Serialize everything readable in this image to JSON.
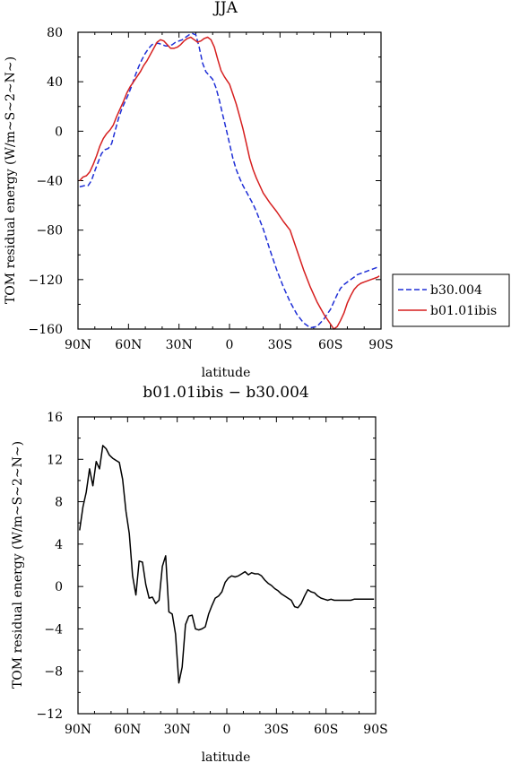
{
  "chart_data": [
    {
      "type": "line",
      "title": "JJA",
      "xlabel": "latitude",
      "ylabel": "TOM residual energy (W/m~S~2~N~)",
      "xlim": [
        90,
        -90
      ],
      "ylim": [
        -160,
        80
      ],
      "x_ticks": [
        90,
        60,
        30,
        0,
        -30,
        -60,
        -90
      ],
      "x_tick_labels": [
        "90N",
        "60N",
        "30N",
        "0",
        "30S",
        "60S",
        "90S"
      ],
      "y_ticks": [
        -160,
        -120,
        -80,
        -40,
        0,
        40,
        80
      ],
      "y_tick_labels": [
        "−160",
        "−120",
        "−80",
        "−40",
        "0",
        "40",
        "80"
      ],
      "legend_position": "right",
      "series": [
        {
          "name": "b30.004",
          "color": "#1f2fd6",
          "dash": "dashed",
          "x": [
            89,
            86,
            84,
            82,
            80,
            78,
            76,
            74,
            72,
            70,
            68,
            66,
            64,
            62,
            60,
            58,
            56,
            54,
            52,
            50,
            48,
            46,
            44,
            42,
            40,
            38,
            36,
            34,
            32,
            30,
            28,
            26,
            24,
            22,
            20,
            18,
            16,
            14,
            12,
            10,
            8,
            6,
            4,
            2,
            0,
            -2,
            -4,
            -6,
            -8,
            -10,
            -12,
            -14,
            -16,
            -18,
            -20,
            -24,
            -28,
            -32,
            -36,
            -40,
            -44,
            -48,
            -52,
            -56,
            -60,
            -62,
            -64,
            -66,
            -68,
            -70,
            -72,
            -74,
            -76,
            -78,
            -80,
            -82,
            -84,
            -86,
            -88,
            -89
          ],
          "values": [
            -45,
            -44,
            -44,
            -40,
            -32,
            -25,
            -18,
            -15,
            -14,
            -10,
            0,
            10,
            18,
            24,
            30,
            37,
            45,
            52,
            58,
            63,
            67,
            70,
            71,
            71,
            70,
            69,
            69,
            70,
            72,
            73,
            74,
            76,
            78,
            79,
            78,
            68,
            55,
            48,
            45,
            42,
            35,
            25,
            13,
            2,
            -10,
            -22,
            -31,
            -38,
            -44,
            -49,
            -54,
            -59,
            -65,
            -72,
            -79,
            -96,
            -112,
            -126,
            -138,
            -148,
            -155,
            -159,
            -158,
            -152,
            -144,
            -138,
            -132,
            -127,
            -124,
            -122,
            -120,
            -118,
            -116,
            -115,
            -114,
            -113,
            -112,
            -111,
            -110,
            -110
          ]
        },
        {
          "name": "b01.01ibis",
          "color": "#d61f1f",
          "dash": "solid",
          "x": [
            89,
            87,
            85,
            83,
            81,
            79,
            77,
            75,
            73,
            71,
            69,
            67,
            65,
            63,
            61,
            59,
            57,
            55,
            53,
            51,
            49,
            47,
            45,
            43,
            41,
            39,
            37,
            35,
            33,
            31,
            29,
            27,
            25,
            23,
            21,
            19,
            17,
            15,
            13,
            11,
            9,
            7,
            5,
            3,
            1,
            0,
            -2,
            -4,
            -6,
            -8,
            -10,
            -12,
            -14,
            -16,
            -18,
            -20,
            -24,
            -28,
            -32,
            -36,
            -40,
            -44,
            -48,
            -52,
            -56,
            -60,
            -62,
            -64,
            -66,
            -68,
            -70,
            -72,
            -74,
            -76,
            -78,
            -80,
            -82,
            -84,
            -86,
            -88,
            -89
          ],
          "values": [
            -40,
            -37,
            -36,
            -33,
            -27,
            -20,
            -12,
            -6,
            -2,
            1,
            5,
            12,
            18,
            24,
            31,
            36,
            40,
            44,
            48,
            53,
            57,
            62,
            67,
            72,
            74,
            73,
            70,
            67,
            67,
            68,
            70,
            73,
            75,
            76,
            74,
            72,
            73,
            75,
            76,
            74,
            68,
            58,
            49,
            44,
            40,
            38,
            30,
            22,
            12,
            2,
            -10,
            -22,
            -31,
            -38,
            -44,
            -50,
            -58,
            -65,
            -73,
            -80,
            -96,
            -112,
            -126,
            -138,
            -148,
            -156,
            -160,
            -158,
            -153,
            -147,
            -139,
            -133,
            -128,
            -125,
            -123,
            -122,
            -121,
            -120,
            -119,
            -118,
            -117
          ]
        }
      ]
    },
    {
      "type": "line",
      "title": "b01.01ibis − b30.004",
      "xlabel": "latitude",
      "ylabel": "TOM residual energy (W/m~S~2~N~)",
      "xlim": [
        90,
        -90
      ],
      "ylim": [
        -12,
        16
      ],
      "x_ticks": [
        90,
        60,
        30,
        0,
        -30,
        -60,
        -90
      ],
      "x_tick_labels": [
        "90N",
        "60N",
        "30N",
        "0",
        "30S",
        "60S",
        "90S"
      ],
      "y_ticks": [
        -12,
        -8,
        -4,
        0,
        4,
        8,
        12,
        16
      ],
      "y_tick_labels": [
        "−12",
        "−8",
        "−4",
        "0",
        "4",
        "8",
        "12",
        "16"
      ],
      "series": [
        {
          "name": "",
          "color": "#000000",
          "dash": "solid",
          "x": [
            89,
            87,
            85,
            83,
            81,
            79,
            77,
            75,
            73,
            71,
            69,
            67,
            65,
            63,
            61,
            59,
            57,
            55,
            53,
            51,
            49,
            47,
            45,
            43,
            41,
            39,
            37,
            35,
            33,
            31,
            29,
            27,
            25,
            23,
            21,
            19,
            17,
            15,
            13,
            11,
            9,
            7,
            5,
            3,
            1,
            -1,
            -3,
            -5,
            -7,
            -9,
            -11,
            -13,
            -15,
            -17,
            -19,
            -21,
            -23,
            -25,
            -27,
            -29,
            -31,
            -33,
            -35,
            -37,
            -39,
            -41,
            -43,
            -45,
            -47,
            -49,
            -51,
            -53,
            -55,
            -57,
            -59,
            -61,
            -63,
            -65,
            -67,
            -69,
            -71,
            -73,
            -75,
            -77,
            -79,
            -81,
            -83,
            -85,
            -87,
            -89
          ],
          "values": [
            5.3,
            7.5,
            8.9,
            11.1,
            9.5,
            11.8,
            11.1,
            13.3,
            13.0,
            12.4,
            12.1,
            11.9,
            11.7,
            10.1,
            7.1,
            5.0,
            1.0,
            -0.8,
            2.4,
            2.3,
            0.2,
            -1.1,
            -1.0,
            -1.6,
            -1.3,
            1.9,
            2.9,
            -2.4,
            -2.6,
            -4.5,
            -9.1,
            -7.6,
            -3.6,
            -2.8,
            -2.7,
            -4.0,
            -4.1,
            -4.0,
            -3.8,
            -2.6,
            -1.8,
            -1.1,
            -0.9,
            -0.5,
            0.4,
            0.8,
            1.0,
            0.9,
            1.0,
            1.2,
            1.4,
            1.1,
            1.3,
            1.2,
            1.2,
            1.0,
            0.6,
            0.3,
            0.1,
            -0.2,
            -0.4,
            -0.7,
            -0.9,
            -1.1,
            -1.3,
            -1.9,
            -2.0,
            -1.6,
            -0.9,
            -0.3,
            -0.5,
            -0.6,
            -0.9,
            -1.1,
            -1.2,
            -1.3,
            -1.2,
            -1.3,
            -1.3,
            -1.3,
            -1.3,
            -1.3,
            -1.3,
            -1.2,
            -1.2,
            -1.2,
            -1.2,
            -1.2,
            -1.2,
            -1.2
          ]
        }
      ]
    }
  ]
}
